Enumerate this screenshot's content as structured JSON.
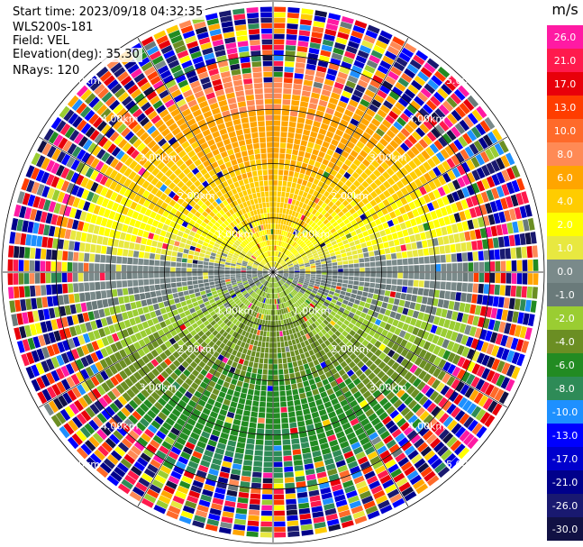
{
  "header": {
    "start_time": "Start time: 2023/09/18 04:32:35",
    "instrument": "WLS200s-181",
    "field": "Field: VEL",
    "elevation": "Elevation(deg): 35.30",
    "nrays": "NRays: 120"
  },
  "chart_data": {
    "type": "heatmap",
    "subtype": "polar-ppi",
    "n_rays": 120,
    "range_rings": [
      "1.00km",
      "2.00km",
      "3.00km",
      "4.00km",
      "5.00km"
    ],
    "range_ring_km": [
      1,
      2,
      3,
      4,
      5
    ],
    "max_range_km": 7.0,
    "colorbar": {
      "unit": "m/s",
      "tick_labels": [
        "26.0",
        "21.0",
        "17.0",
        "13.0",
        "10.0",
        "8.0",
        "6.0",
        "4.0",
        "2.0",
        "1.0",
        "0.0",
        "-1.0",
        "-2.0",
        "-4.0",
        "-6.0",
        "-8.0",
        "-10.0",
        "-13.0",
        "-17.0",
        "-21.0",
        "-26.0",
        "-30.0"
      ],
      "colors": [
        "#ff1aa3",
        "#ff1a4d",
        "#e8000a",
        "#ff3d00",
        "#ff6a2a",
        "#ff8a55",
        "#ffa500",
        "#ffcc00",
        "#ffff00",
        "#e8e840",
        "#7a8a8a",
        "#6a7a7a",
        "#9acd32",
        "#6b8e23",
        "#228b22",
        "#2e8b57",
        "#1e90ff",
        "#0000ff",
        "#0000cd",
        "#00008b",
        "#191970",
        "#111144"
      ]
    },
    "pattern": "Near-field (under ~3.5 km) shows organized flow: positive velocities (yellow/orange) to the north, near-zero (gray) along the east-west axis, negative velocities (greens) to the south. Beyond ~3.5 km values are noisy across the full palette."
  }
}
